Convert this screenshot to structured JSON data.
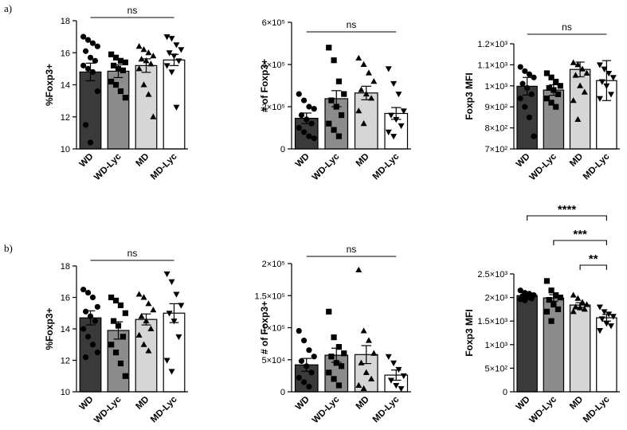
{
  "figure": {
    "panel_labels": [
      "a)",
      "b)"
    ]
  },
  "chart_data": [
    {
      "id": "a1",
      "row": "a",
      "type": "bar",
      "ylabel": "%Foxp3+",
      "ylim": [
        10,
        18
      ],
      "yticks": [
        10,
        12,
        14,
        16,
        18
      ],
      "ytick_labels": [
        "10",
        "12",
        "14",
        "16",
        "18"
      ],
      "categories": [
        "WD",
        "WD-Lyc",
        "MD",
        "MD-Lyc"
      ],
      "fills": [
        "#3a3a3a",
        "#8c8c8c",
        "#d6d6d6",
        "#ffffff"
      ],
      "markers": [
        "circle",
        "square",
        "triangle",
        "triangle-down"
      ],
      "means": [
        14.8,
        14.85,
        15.2,
        15.55
      ],
      "sem": [
        0.55,
        0.4,
        0.42,
        0.35
      ],
      "points": [
        [
          17.0,
          16.8,
          16.6,
          16.4,
          16.1,
          15.7,
          15.5,
          15.2,
          15.0,
          14.8,
          13.6,
          11.5,
          10.4
        ],
        [
          15.9,
          15.7,
          15.5,
          15.4,
          15.2,
          15.0,
          14.9,
          14.2,
          14.0,
          13.6,
          13.2
        ],
        [
          16.4,
          16.2,
          16.0,
          15.8,
          15.6,
          15.5,
          15.3,
          15.0,
          14.0,
          13.4,
          12.0
        ],
        [
          17.0,
          16.9,
          16.5,
          16.2,
          16.0,
          15.8,
          15.5,
          15.2,
          14.8,
          12.6
        ]
      ],
      "comparisons": [
        {
          "from": 0,
          "to": 3,
          "label": "ns"
        }
      ]
    },
    {
      "id": "a2",
      "row": "a",
      "type": "bar",
      "ylabel": "# of Foxp3+",
      "ylim": [
        0,
        600000
      ],
      "yticks": [
        0,
        200000,
        400000,
        600000
      ],
      "ytick_labels": [
        "0",
        "2×10⁵",
        "4×10⁵",
        "6×10⁵"
      ],
      "categories": [
        "WD",
        "WD-Lyc",
        "MD",
        "MD-Lyc"
      ],
      "fills": [
        "#3a3a3a",
        "#8c8c8c",
        "#d6d6d6",
        "#ffffff"
      ],
      "markers": [
        "circle",
        "square",
        "triangle",
        "triangle-down"
      ],
      "means": [
        145000,
        238000,
        265000,
        168000
      ],
      "sem": [
        25000,
        38000,
        32000,
        28000
      ],
      "points": [
        [
          260000,
          230000,
          200000,
          190000,
          160000,
          140000,
          120000,
          100000,
          80000,
          60000,
          50000
        ],
        [
          480000,
          420000,
          320000,
          260000,
          230000,
          200000,
          160000,
          120000,
          90000,
          60000
        ],
        [
          430000,
          400000,
          360000,
          320000,
          280000,
          260000,
          240000,
          180000,
          120000
        ],
        [
          380000,
          310000,
          260000,
          180000,
          160000,
          140000,
          110000,
          80000,
          60000
        ]
      ],
      "comparisons": [
        {
          "from": 0,
          "to": 3,
          "label": "ns"
        }
      ]
    },
    {
      "id": "a3",
      "row": "a",
      "type": "bar",
      "ylabel": "Foxp3 MFI",
      "ylim": [
        700,
        1200
      ],
      "yticks": [
        700,
        800,
        900,
        1000,
        1100,
        1200
      ],
      "ytick_labels": [
        "7×10²",
        "8×10²",
        "9×10²",
        "1×10³",
        "1.1×10³",
        "1.2×10³"
      ],
      "categories": [
        "WD",
        "WD-Lyc",
        "MD",
        "MD-Lyc"
      ],
      "fills": [
        "#3a3a3a",
        "#8c8c8c",
        "#d6d6d6",
        "#ffffff"
      ],
      "markers": [
        "circle",
        "square",
        "triangle",
        "triangle-down"
      ],
      "means": [
        998,
        980,
        1078,
        1025
      ],
      "sem": [
        42,
        25,
        35,
        95
      ],
      "points": [
        [
          1090,
          1070,
          1055,
          1040,
          1010,
          990,
          960,
          940,
          900,
          850,
          760
        ],
        [
          1060,
          1040,
          1020,
          1000,
          990,
          980,
          960,
          940,
          920,
          900
        ],
        [
          1110,
          1100,
          1080,
          1060,
          1050,
          1000,
          970,
          930,
          840
        ],
        [
          1100,
          1080,
          1060,
          1040,
          1020,
          1000,
          960,
          940
        ]
      ],
      "comparisons": [
        {
          "from": 0,
          "to": 3,
          "label": "ns"
        }
      ]
    },
    {
      "id": "b1",
      "row": "b",
      "type": "bar",
      "ylabel": "%Foxp3+",
      "ylim": [
        10,
        18
      ],
      "yticks": [
        10,
        12,
        14,
        16,
        18
      ],
      "ytick_labels": [
        "10",
        "12",
        "14",
        "16",
        "18"
      ],
      "categories": [
        "WD",
        "WD-Lyc",
        "MD",
        "MD-Lyc"
      ],
      "fills": [
        "#3a3a3a",
        "#8c8c8c",
        "#d6d6d6",
        "#ffffff"
      ],
      "markers": [
        "circle",
        "square",
        "triangle",
        "triangle-down"
      ],
      "means": [
        14.7,
        13.9,
        14.6,
        15.0
      ],
      "sem": [
        0.45,
        0.55,
        0.35,
        0.6
      ],
      "points": [
        [
          16.5,
          16.3,
          16.0,
          15.4,
          15.1,
          14.8,
          14.5,
          14.0,
          13.5,
          13.0,
          12.5,
          12.2
        ],
        [
          16.0,
          15.8,
          15.5,
          15.0,
          14.5,
          14.2,
          13.5,
          13.0,
          12.5,
          11.8,
          11.0
        ],
        [
          16.2,
          16.0,
          15.6,
          15.2,
          14.8,
          14.5,
          14.0,
          13.6,
          13.0,
          12.6
        ],
        [
          17.5,
          17.0,
          16.2,
          15.5,
          15.0,
          14.5,
          13.5,
          12.0,
          11.3
        ]
      ],
      "comparisons": [
        {
          "from": 0,
          "to": 3,
          "label": "ns"
        }
      ]
    },
    {
      "id": "b2",
      "row": "b",
      "type": "bar",
      "ylabel": "# of Foxp3+",
      "ylim": [
        0,
        200000
      ],
      "yticks": [
        0,
        50000,
        100000,
        150000,
        200000
      ],
      "ytick_labels": [
        "0",
        "5×10⁴",
        "1×10⁵",
        "1.5×10⁵",
        "2×10⁵"
      ],
      "categories": [
        "WD",
        "WD-Lyc",
        "MD",
        "MD-Lyc"
      ],
      "fills": [
        "#3a3a3a",
        "#8c8c8c",
        "#d6d6d6",
        "#ffffff"
      ],
      "markers": [
        "circle",
        "square",
        "triangle",
        "triangle-down"
      ],
      "means": [
        42000,
        57000,
        58000,
        26000
      ],
      "sem": [
        10000,
        11000,
        14000,
        8000
      ],
      "points": [
        [
          95000,
          80000,
          65000,
          55000,
          48000,
          40000,
          30000,
          22000,
          15000,
          8000
        ],
        [
          125000,
          85000,
          70000,
          60000,
          55000,
          45000,
          40000,
          30000,
          20000,
          10000
        ],
        [
          190000,
          95000,
          80000,
          60000,
          45000,
          30000,
          20000,
          10000,
          5000
        ],
        [
          55000,
          45000,
          35000,
          25000,
          18000,
          10000,
          5000
        ]
      ],
      "comparisons": [
        {
          "from": 0,
          "to": 3,
          "label": "ns"
        }
      ]
    },
    {
      "id": "b3",
      "row": "b",
      "type": "bar",
      "ylabel": "Foxp3 MFI",
      "ylim": [
        0,
        2500
      ],
      "yticks": [
        0,
        500,
        1000,
        1500,
        2000,
        2500
      ],
      "ytick_labels": [
        "0",
        "5×10²",
        "1×10³",
        "1.5×10³",
        "2×10³",
        "2.5×10³"
      ],
      "categories": [
        "WD",
        "WD-Lyc",
        "MD",
        "MD-Lyc"
      ],
      "fills": [
        "#3a3a3a",
        "#8c8c8c",
        "#d6d6d6",
        "#ffffff"
      ],
      "markers": [
        "circle",
        "square",
        "triangle",
        "triangle-down"
      ],
      "means": [
        2040,
        1990,
        1840,
        1570
      ],
      "sem": [
        40,
        70,
        50,
        70
      ],
      "points": [
        [
          2150,
          2100,
          2080,
          2050,
          2030,
          2000,
          1980,
          1960,
          1940
        ],
        [
          2350,
          2150,
          2050,
          2000,
          1950,
          1850,
          1750,
          1700,
          1500
        ],
        [
          2050,
          1980,
          1900,
          1850,
          1800,
          1780,
          1750,
          1700
        ],
        [
          1800,
          1700,
          1650,
          1600,
          1550,
          1450,
          1400,
          1300
        ]
      ],
      "comparisons": [
        {
          "from": 0,
          "to": 3,
          "label": "****"
        },
        {
          "from": 1,
          "to": 3,
          "label": "***"
        },
        {
          "from": 2,
          "to": 3,
          "label": "**"
        }
      ]
    }
  ]
}
